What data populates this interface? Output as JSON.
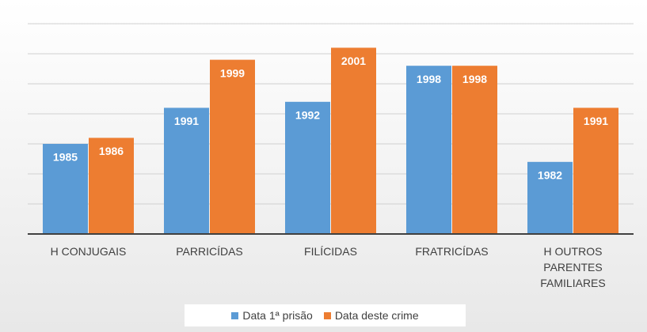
{
  "chart_data": {
    "type": "bar",
    "categories": [
      "H CONJUGAIS",
      "PARRICÍDAS",
      "FILÍCIDAS",
      "FRATRICÍDAS",
      "H OUTROS PARENTES FAMILIARES"
    ],
    "series": [
      {
        "name": "Data 1ª prisão",
        "color": "#5b9bd5",
        "values": [
          1985,
          1991,
          1992,
          1998,
          1982
        ]
      },
      {
        "name": "Data deste crime",
        "color": "#ed7d31",
        "values": [
          1986,
          1999,
          2001,
          1998,
          1991
        ]
      }
    ],
    "ylim": [
      1970,
      2005
    ],
    "yticks": [
      1970,
      1975,
      1980,
      1985,
      1990,
      1995,
      2000,
      2005
    ],
    "grid": true,
    "legend": "bottom"
  }
}
